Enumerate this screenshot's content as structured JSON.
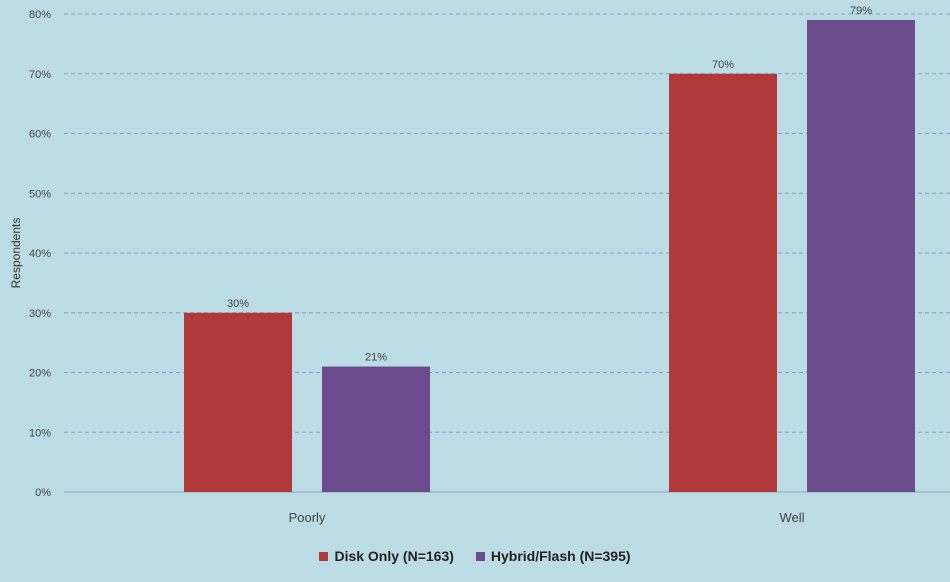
{
  "chart_data": {
    "type": "bar",
    "title": "",
    "xlabel": "",
    "ylabel": "Respondents",
    "categories": [
      "Poorly",
      "Well"
    ],
    "series": [
      {
        "name": "Disk Only (N=163)",
        "values": [
          30,
          70
        ],
        "labels": [
          "30%",
          "70%"
        ],
        "color": "#b03a3a"
      },
      {
        "name": "Hybrid/Flash (N=395)",
        "values": [
          21,
          79
        ],
        "labels": [
          "21%",
          "79%"
        ],
        "color": "#6c4c8e"
      }
    ],
    "ylim": [
      0,
      80
    ],
    "yticks": [
      0,
      10,
      20,
      30,
      40,
      50,
      60,
      70,
      80
    ],
    "ytick_labels": [
      "0%",
      "10%",
      "20%",
      "30%",
      "40%",
      "50%",
      "60%",
      "70%",
      "80%"
    ],
    "grid": true,
    "legend": "bottom-center"
  }
}
